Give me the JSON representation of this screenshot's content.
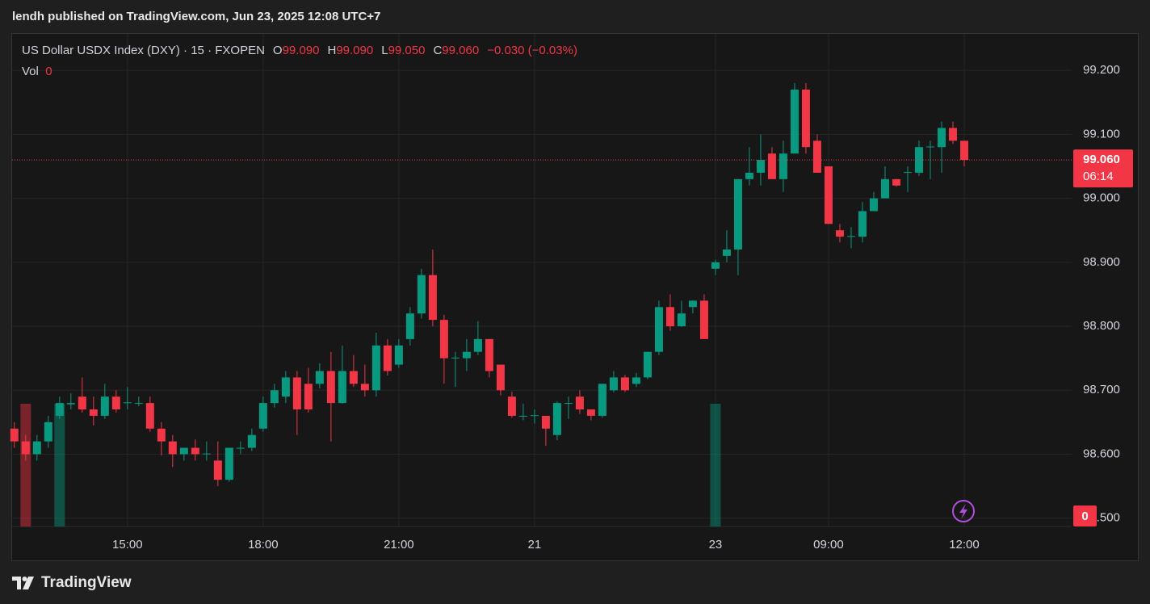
{
  "header": "lendh published on TradingView.com, Jun 23, 2025 12:08 UTC+7",
  "footer": "TradingView",
  "chart_data": {
    "type": "candlestick",
    "legend": {
      "symbol": "US Dollar USDX Index (DXY) · 15 · FXOPEN",
      "ohlc": [
        {
          "label": "O",
          "value": "99.090"
        },
        {
          "label": "H",
          "value": "99.090"
        },
        {
          "label": "L",
          "value": "99.050"
        },
        {
          "label": "C",
          "value": "99.060"
        }
      ],
      "change": "−0.030 (−0.03%)",
      "volume_label": "Vol",
      "volume_value": "0"
    },
    "up_color": "#089981",
    "down_color": "#f23645",
    "open": [
      98.64,
      98.62,
      98.6,
      98.62,
      98.66,
      98.678,
      98.69,
      98.67,
      98.66,
      98.69,
      98.68,
      98.68,
      98.68,
      98.64,
      98.62,
      98.6,
      98.61,
      98.6,
      98.59,
      98.56,
      98.609,
      98.61,
      98.64,
      98.68,
      98.69,
      98.72,
      98.71,
      98.71,
      98.73,
      98.68,
      98.73,
      98.71,
      98.7,
      98.77,
      98.74,
      98.78,
      98.82,
      98.88,
      98.81,
      98.75,
      98.75,
      98.76,
      98.78,
      98.74,
      98.69,
      98.659,
      98.66,
      98.66,
      98.63,
      98.679,
      98.69,
      98.67,
      98.66,
      98.7,
      98.72,
      98.71,
      98.72,
      98.76,
      98.83,
      98.8,
      98.83,
      98.84,
      98.89,
      98.91,
      98.92,
      99.03,
      99.04,
      99.07,
      99.03,
      99.07,
      99.17,
      99.09,
      99.05,
      98.95,
      98.94,
      98.94,
      98.98,
      99.0,
      99.03,
      99.04,
      99.04,
      99.08,
      99.08,
      99.11,
      99.09
    ],
    "high": [
      98.65,
      98.63,
      98.63,
      98.66,
      98.69,
      98.695,
      98.72,
      98.69,
      98.71,
      98.7,
      98.705,
      98.69,
      98.69,
      98.65,
      98.63,
      98.61,
      98.623,
      98.62,
      98.62,
      98.61,
      98.62,
      98.64,
      98.69,
      98.71,
      98.73,
      98.73,
      98.735,
      98.742,
      98.76,
      98.77,
      98.755,
      98.74,
      98.79,
      98.78,
      98.78,
      98.83,
      98.89,
      98.92,
      98.818,
      98.76,
      98.78,
      98.808,
      98.78,
      98.74,
      98.698,
      98.679,
      98.67,
      98.66,
      98.683,
      98.69,
      98.7,
      98.67,
      98.71,
      98.73,
      98.724,
      98.727,
      98.76,
      98.84,
      98.85,
      98.84,
      98.84,
      98.85,
      98.904,
      98.95,
      99.03,
      99.08,
      99.1,
      99.08,
      99.09,
      99.18,
      99.18,
      99.1,
      99.05,
      98.96,
      98.955,
      98.994,
      99.01,
      99.05,
      99.03,
      99.05,
      99.09,
      99.09,
      99.12,
      99.12,
      99.09
    ],
    "low": [
      98.61,
      98.59,
      98.59,
      98.61,
      98.655,
      98.67,
      98.665,
      98.645,
      98.655,
      98.665,
      98.67,
      98.675,
      98.635,
      98.598,
      98.58,
      98.59,
      98.59,
      98.59,
      98.55,
      98.557,
      98.6,
      98.605,
      98.635,
      98.673,
      98.68,
      98.63,
      98.665,
      98.703,
      98.62,
      98.679,
      98.705,
      98.69,
      98.69,
      98.723,
      98.735,
      98.77,
      98.812,
      98.8,
      98.71,
      98.705,
      98.73,
      98.755,
      98.72,
      98.692,
      98.657,
      98.653,
      98.648,
      98.613,
      98.622,
      98.655,
      98.663,
      98.653,
      98.657,
      98.697,
      98.697,
      98.705,
      98.717,
      98.755,
      98.793,
      98.799,
      98.82,
      98.78,
      98.88,
      98.9,
      98.88,
      99.02,
      99.02,
      99.03,
      99.01,
      99.07,
      99.07,
      99.04,
      98.96,
      98.931,
      98.922,
      98.931,
      98.98,
      99.0,
      99.018,
      99.01,
      99.035,
      99.03,
      99.04,
      99.085,
      99.05
    ],
    "close": [
      98.62,
      98.6,
      98.62,
      98.65,
      98.68,
      98.68,
      98.67,
      98.66,
      98.69,
      98.67,
      98.681,
      98.68,
      98.64,
      98.62,
      98.6,
      98.61,
      98.6,
      98.601,
      98.56,
      98.61,
      98.61,
      98.63,
      98.68,
      98.7,
      98.72,
      98.67,
      98.67,
      98.73,
      98.68,
      98.73,
      98.71,
      98.7,
      98.77,
      98.73,
      98.77,
      98.82,
      98.88,
      98.81,
      98.75,
      98.751,
      98.76,
      98.78,
      98.73,
      98.7,
      98.66,
      98.66,
      98.661,
      98.64,
      98.68,
      98.68,
      98.67,
      98.66,
      98.71,
      98.72,
      98.7,
      98.72,
      98.76,
      98.83,
      98.8,
      98.82,
      98.84,
      98.78,
      98.9,
      98.92,
      99.03,
      99.04,
      99.06,
      99.03,
      99.07,
      99.17,
      99.08,
      99.04,
      98.96,
      98.94,
      98.941,
      98.98,
      99.0,
      99.03,
      99.02,
      99.041,
      99.08,
      99.081,
      99.11,
      99.09,
      99.06
    ],
    "volume": [
      0,
      1,
      0,
      0,
      1,
      0,
      0,
      0,
      0,
      0,
      0,
      0,
      0,
      0,
      0,
      0,
      0,
      0,
      0,
      0,
      0,
      0,
      0,
      0,
      0,
      0,
      0,
      0,
      0,
      0,
      0,
      0,
      0,
      0,
      0,
      0,
      0,
      0,
      0,
      0,
      0,
      0,
      0,
      0,
      0,
      0,
      0,
      0,
      0,
      0,
      0,
      0,
      0,
      0,
      0,
      0,
      0,
      0,
      0,
      0,
      0,
      0,
      1,
      0,
      0,
      0,
      0,
      0,
      0,
      0,
      0,
      0,
      0,
      0,
      0,
      0,
      0,
      0,
      0,
      0,
      0,
      0,
      0,
      0,
      0
    ],
    "vlim": [
      0,
      1
    ],
    "xlim": [
      -0.2,
      93.5
    ],
    "xticks": [
      {
        "value": 10,
        "label": "15:00"
      },
      {
        "value": 22,
        "label": "18:00"
      },
      {
        "value": 34,
        "label": "21:00"
      },
      {
        "value": 46,
        "label": "21"
      },
      {
        "value": 62,
        "label": "23"
      },
      {
        "value": 72,
        "label": "09:00"
      },
      {
        "value": 84,
        "label": "12:00"
      }
    ],
    "ylim": [
      98.487,
      99.257
    ],
    "yticks": [
      {
        "value": 98.5,
        "label": "98.500"
      },
      {
        "value": 98.6,
        "label": "98.600"
      },
      {
        "value": 98.7,
        "label": "98.700"
      },
      {
        "value": 98.8,
        "label": "98.800"
      },
      {
        "value": 98.9,
        "label": "98.900"
      },
      {
        "value": 99.0,
        "label": "99.000"
      },
      {
        "value": 99.1,
        "label": "99.100"
      },
      {
        "value": 99.2,
        "label": "99.200"
      }
    ],
    "grid": true,
    "last_price": {
      "value": 99.06,
      "label": "99.060"
    },
    "countdown": "06:14",
    "last_volume": "0"
  }
}
